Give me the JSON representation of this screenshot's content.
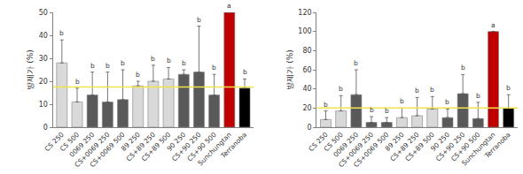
{
  "chart_data": [
    {
      "type": "bar",
      "ylabel": "방제가 (%)",
      "categories": [
        "CS 250",
        "CS 500",
        "0069 250",
        "CS+0069 250",
        "CS+0069 500",
        "89 250",
        "CS+89 250",
        "CS+89 500",
        "90 250",
        "CS+90 250",
        "CS+90 500",
        "Sunchungtan",
        "Terranoba"
      ],
      "values": [
        28,
        11,
        14,
        11,
        12,
        18,
        20,
        21,
        23,
        24,
        14,
        50,
        17
      ],
      "errors": [
        10,
        6,
        10,
        13,
        13,
        2,
        7,
        5,
        2,
        20,
        9,
        0,
        4
      ],
      "significance": [
        "b",
        "b",
        "b",
        "b",
        "b",
        "b",
        "b",
        "b",
        "b",
        "b",
        "b",
        "a",
        "b"
      ],
      "colors": [
        "#d9d9d9",
        "#d9d9d9",
        "#595959",
        "#595959",
        "#595959",
        "#d9d9d9",
        "#d9d9d9",
        "#d9d9d9",
        "#595959",
        "#595959",
        "#595959",
        "#c00000",
        "#000000"
      ],
      "reference_line": 17.5,
      "ylim": [
        0,
        50
      ],
      "yticks": [
        0,
        10,
        20,
        30,
        40,
        50
      ],
      "grid": false
    },
    {
      "type": "bar",
      "ylabel": "방제가 (%)",
      "categories": [
        "CS 250",
        "CS 500",
        "0069 250",
        "CS+0069 250",
        "CS+0069 500",
        "89 250",
        "CS+89 250",
        "CS+89 500",
        "90 250",
        "CS+90 250",
        "CS+90 500",
        "Sunchungtan",
        "Terranoba"
      ],
      "values": [
        8,
        17,
        34,
        5,
        5,
        10,
        12,
        19,
        10,
        35,
        9,
        100,
        20
      ],
      "errors": [
        9,
        16,
        26,
        6,
        5,
        10,
        19,
        13,
        9,
        20,
        17,
        0,
        14
      ],
      "significance": [
        "b",
        "b",
        "b",
        "b",
        "b",
        "b",
        "b",
        "b",
        "b",
        "b",
        "b",
        "a",
        "b"
      ],
      "colors": [
        "#d9d9d9",
        "#d9d9d9",
        "#595959",
        "#595959",
        "#595959",
        "#d9d9d9",
        "#d9d9d9",
        "#d9d9d9",
        "#595959",
        "#595959",
        "#595959",
        "#c00000",
        "#000000"
      ],
      "reference_line": 20,
      "ylim": [
        0,
        120
      ],
      "yticks": [
        0,
        20,
        40,
        60,
        80,
        100,
        120
      ],
      "grid": false
    }
  ]
}
